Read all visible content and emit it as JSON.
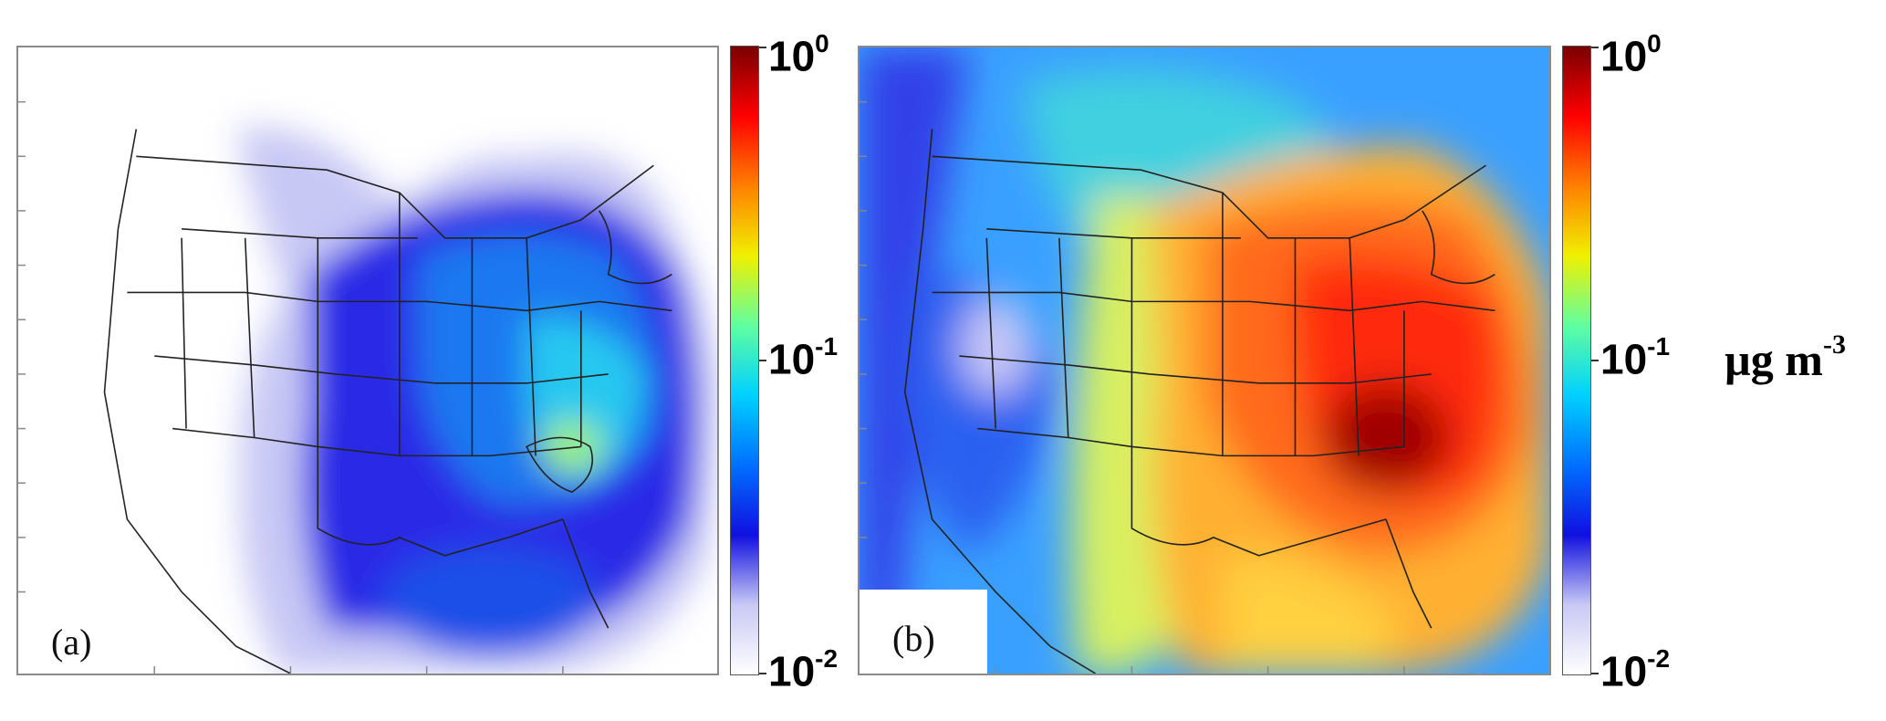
{
  "panels": [
    {
      "id": "a",
      "label": "(a)"
    },
    {
      "id": "b",
      "label": "(b)"
    }
  ],
  "colorbar": {
    "scale": "log",
    "range": [
      0.01,
      1
    ],
    "colormap": [
      "#ffffff",
      "#c8c8f5",
      "#1010e0",
      "#0070ff",
      "#00d0ff",
      "#60ffa0",
      "#f0f000",
      "#ff8000",
      "#ff0000",
      "#7a0000"
    ],
    "tick_labels": [
      {
        "base": "10",
        "exponent": "0"
      },
      {
        "base": "10",
        "exponent": "-1"
      },
      {
        "base": "10",
        "exponent": "-2"
      }
    ]
  },
  "units": {
    "base": "µg m",
    "exponent": "-3"
  }
}
